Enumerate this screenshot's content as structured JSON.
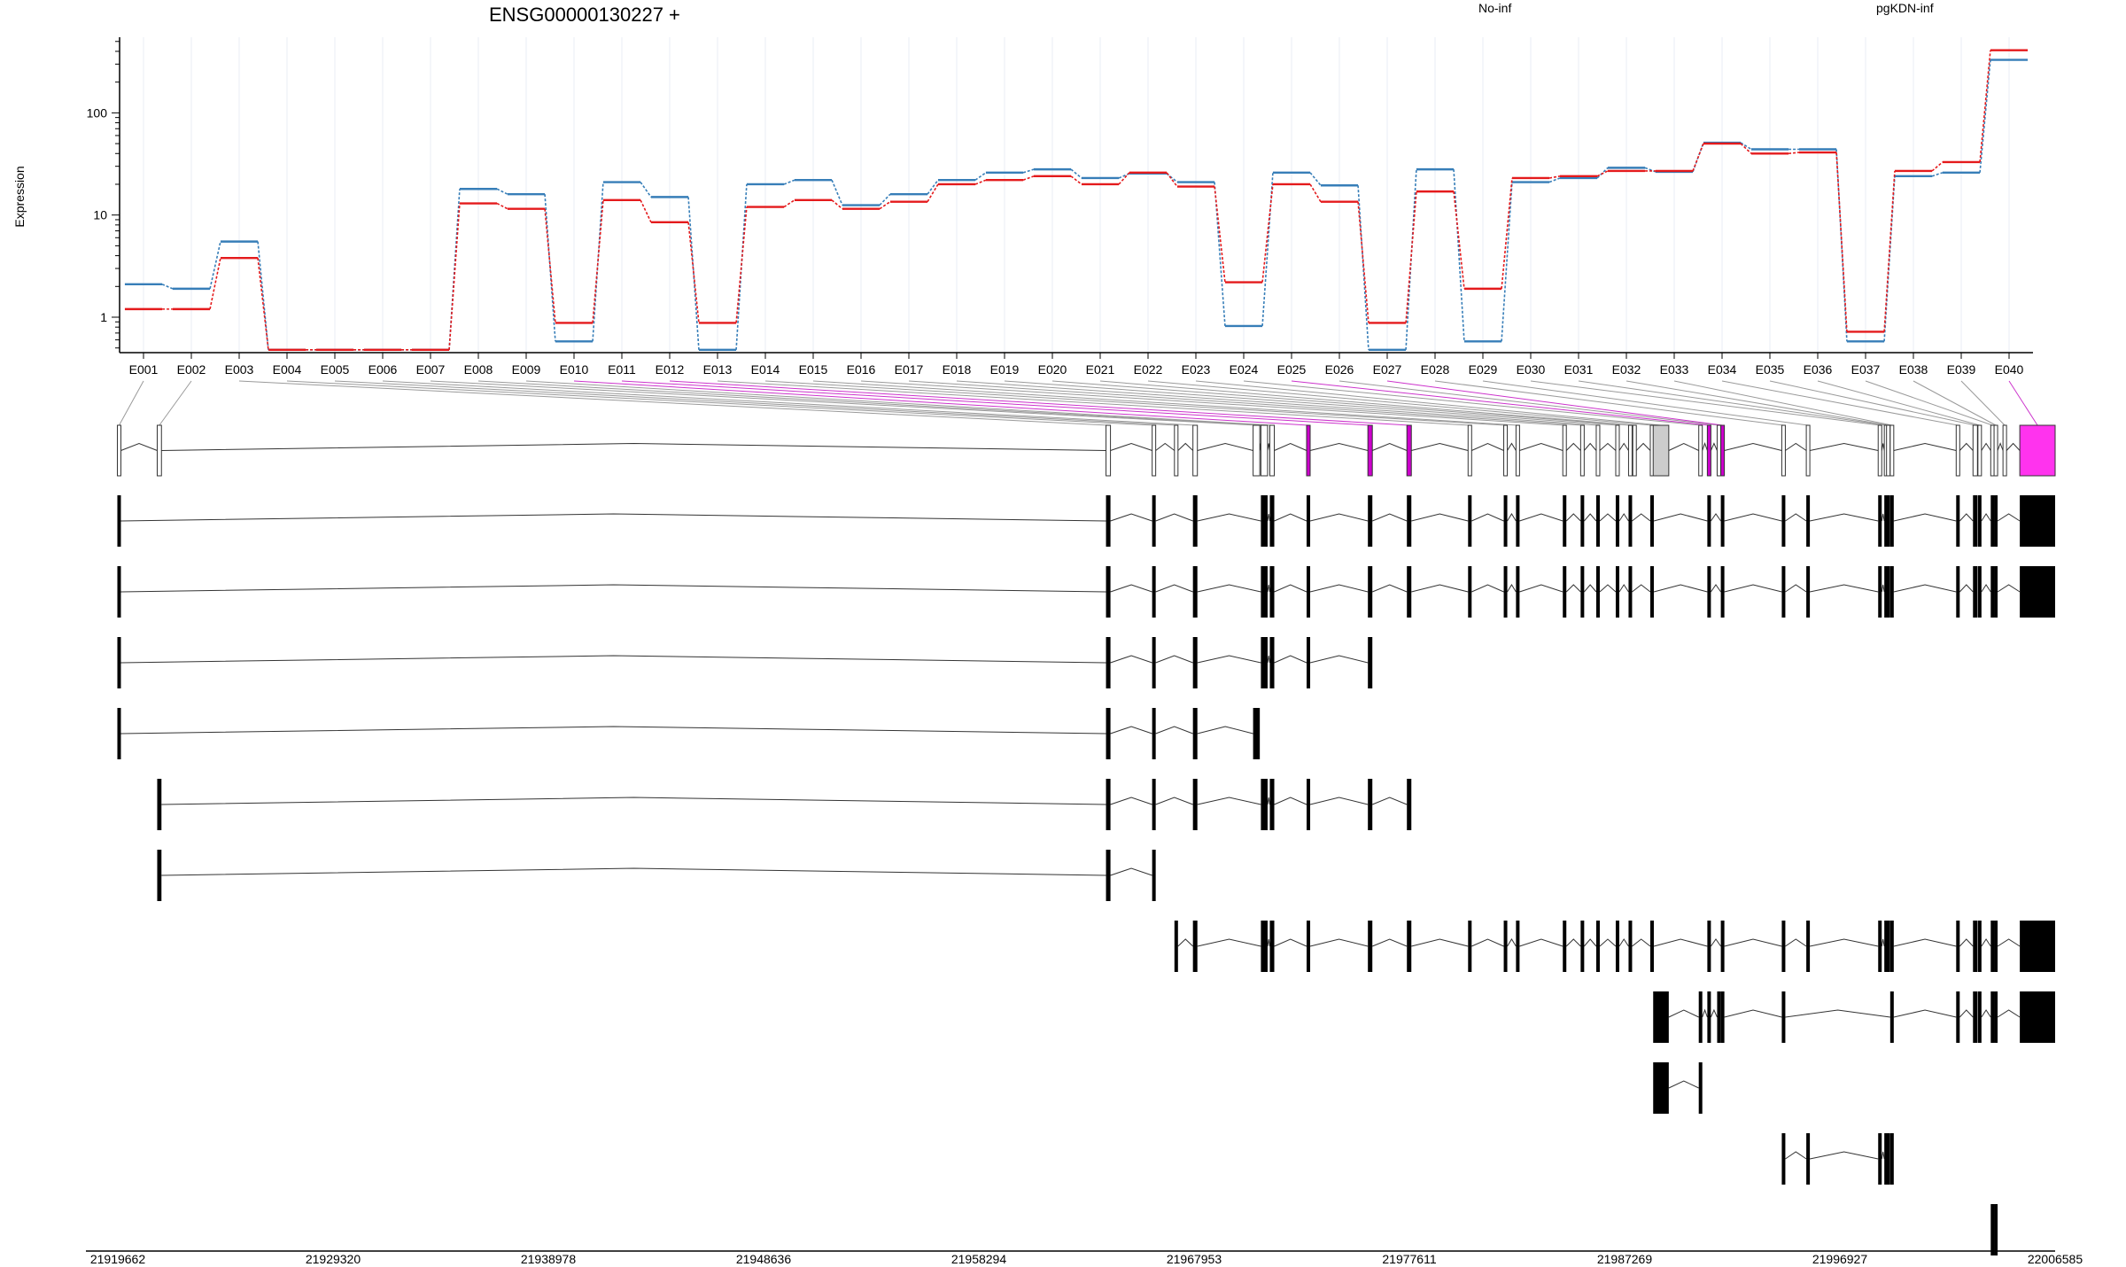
{
  "chart_data": {
    "type": "line",
    "title": "ENSG00000130227 +",
    "ylabel": "Expression",
    "yscale": "log",
    "ylim": [
      0.45,
      550
    ],
    "yticks": [
      {
        "v": 1,
        "label": "1"
      },
      {
        "v": 10,
        "label": "10"
      },
      {
        "v": 100,
        "label": "100"
      }
    ],
    "grid": true,
    "legend_placement": "top",
    "categories": [
      "E001",
      "E002",
      "E003",
      "E004",
      "E005",
      "E006",
      "E007",
      "E008",
      "E009",
      "E010",
      "E011",
      "E012",
      "E013",
      "E014",
      "E015",
      "E016",
      "E017",
      "E018",
      "E019",
      "E020",
      "E021",
      "E022",
      "E023",
      "E024",
      "E025",
      "E026",
      "E027",
      "E028",
      "E029",
      "E030",
      "E031",
      "E032",
      "E033",
      "E034",
      "E035",
      "E036",
      "E037",
      "E038",
      "E039",
      "E040"
    ],
    "series": [
      {
        "name": "No-inf",
        "color": "#e41a1c",
        "values": [
          1.2,
          1.2,
          3.8,
          0.48,
          0.48,
          0.48,
          0.48,
          13,
          11.5,
          0.88,
          14,
          8.5,
          0.88,
          12,
          14,
          11.5,
          13.5,
          20,
          22,
          24,
          20,
          26,
          19,
          2.2,
          20,
          13.5,
          0.88,
          17,
          1.9,
          23,
          24,
          27,
          27,
          50,
          40,
          41,
          0.72,
          27,
          33,
          410
        ]
      },
      {
        "name": "pgKDN-inf",
        "color": "#377eb8",
        "values": [
          2.1,
          1.9,
          5.5,
          0.48,
          0.48,
          0.48,
          0.48,
          18,
          16,
          0.58,
          21,
          15,
          0.48,
          20,
          22,
          12.5,
          16,
          22,
          26,
          28,
          23,
          25.5,
          21,
          0.82,
          26,
          19.5,
          0.48,
          28,
          0.58,
          21,
          23,
          29,
          26.5,
          51,
          44,
          44,
          0.58,
          24,
          26,
          330
        ]
      }
    ],
    "genomic_axis": {
      "start": 21919662,
      "end": 22006585,
      "tick_labels": [
        "21919662",
        "21929320",
        "21938978",
        "21948636",
        "21958294",
        "21967953",
        "21977611",
        "21987269",
        "21996927",
        "22006585"
      ]
    },
    "exons": [
      {
        "id": "E001",
        "start": 21919662,
        "end": 21919780,
        "fill": "#ffffff"
      },
      {
        "id": "E002",
        "start": 21921430,
        "end": 21921620,
        "fill": "#ffffff"
      },
      {
        "id": "E003",
        "start": 21964000,
        "end": 21964200,
        "fill": "#ffffff"
      },
      {
        "id": "E004",
        "start": 21966100,
        "end": 21966200,
        "fill": "#ffffff"
      },
      {
        "id": "E005",
        "start": 21967100,
        "end": 21967200,
        "fill": "#ffffff"
      },
      {
        "id": "E006",
        "start": 21967900,
        "end": 21968100,
        "fill": "#ffffff"
      },
      {
        "id": "E007",
        "start": 21970600,
        "end": 21970900,
        "fill": "#ffffff"
      },
      {
        "id": "E008",
        "start": 21970950,
        "end": 21971250,
        "fill": "#ffffff"
      },
      {
        "id": "E009",
        "start": 21971350,
        "end": 21971550,
        "fill": "#ffffff"
      },
      {
        "id": "E010",
        "start": 21973000,
        "end": 21973160,
        "fill": "#cc00cc"
      },
      {
        "id": "E011",
        "start": 21975750,
        "end": 21975950,
        "fill": "#cc00cc"
      },
      {
        "id": "E012",
        "start": 21977500,
        "end": 21977700,
        "fill": "#cc00cc"
      },
      {
        "id": "E013",
        "start": 21980250,
        "end": 21980400,
        "fill": "#ffffff"
      },
      {
        "id": "E014",
        "start": 21981850,
        "end": 21982000,
        "fill": "#ffffff"
      },
      {
        "id": "E015",
        "start": 21982400,
        "end": 21982550,
        "fill": "#ffffff"
      },
      {
        "id": "E016",
        "start": 21984500,
        "end": 21984650,
        "fill": "#ffffff"
      },
      {
        "id": "E017",
        "start": 21985300,
        "end": 21985450,
        "fill": "#ffffff"
      },
      {
        "id": "E018",
        "start": 21986000,
        "end": 21986150,
        "fill": "#ffffff"
      },
      {
        "id": "E019",
        "start": 21986900,
        "end": 21987000,
        "fill": "#ffffff"
      },
      {
        "id": "E020",
        "start": 21987450,
        "end": 21987600,
        "fill": "#ffffff"
      },
      {
        "id": "E021",
        "start": 21987650,
        "end": 21987780,
        "fill": "#ffffff"
      },
      {
        "id": "E022",
        "start": 21988450,
        "end": 21988550,
        "fill": "#ffffff"
      },
      {
        "id": "E023",
        "start": 21988550,
        "end": 21989250,
        "fill": "#cccccc"
      },
      {
        "id": "E024",
        "start": 21990600,
        "end": 21990750,
        "fill": "#ffffff"
      },
      {
        "id": "E025",
        "start": 21991000,
        "end": 21991120,
        "fill": "#cc00cc"
      },
      {
        "id": "E026",
        "start": 21991450,
        "end": 21991550,
        "fill": "#ffffff"
      },
      {
        "id": "E027",
        "start": 21991630,
        "end": 21991700,
        "fill": "#cc00cc"
      },
      {
        "id": "E028",
        "start": 21994350,
        "end": 21994450,
        "fill": "#ffffff"
      },
      {
        "id": "E029",
        "start": 21995450,
        "end": 21995550,
        "fill": "#ffffff"
      },
      {
        "id": "E030",
        "start": 21998650,
        "end": 21998800,
        "fill": "#ffffff"
      },
      {
        "id": "E031",
        "start": 21998950,
        "end": 21999050,
        "fill": "#ffffff"
      },
      {
        "id": "E032",
        "start": 21999050,
        "end": 21999150,
        "fill": "#ffffff"
      },
      {
        "id": "E033",
        "start": 21999200,
        "end": 21999330,
        "fill": "#ffffff"
      },
      {
        "id": "E034",
        "start": 22002150,
        "end": 22002300,
        "fill": "#ffffff"
      },
      {
        "id": "E035",
        "start": 22002900,
        "end": 22003100,
        "fill": "#ffffff"
      },
      {
        "id": "E036",
        "start": 22003150,
        "end": 22003250,
        "fill": "#ffffff"
      },
      {
        "id": "E037",
        "start": 22003700,
        "end": 22003850,
        "fill": "#ffffff"
      },
      {
        "id": "E038",
        "start": 22003900,
        "end": 22003950,
        "fill": "#ffffff"
      },
      {
        "id": "E039",
        "start": 22004300,
        "end": 22004350,
        "fill": "#ffffff"
      },
      {
        "id": "E040",
        "start": 22005000,
        "end": 22006585,
        "fill": "#ff33ee"
      }
    ],
    "transcripts": [
      {
        "exons": [
          1,
          3,
          4,
          6,
          8,
          9,
          10,
          11,
          12,
          13,
          14,
          15,
          16,
          17,
          18,
          19,
          20,
          22,
          25,
          27,
          28,
          29,
          30,
          31,
          32,
          33,
          34,
          35,
          36,
          37,
          38,
          40
        ]
      },
      {
        "exons": [
          1,
          3,
          4,
          6,
          8,
          9,
          10,
          11,
          12,
          13,
          14,
          15,
          16,
          17,
          18,
          19,
          20,
          22,
          25,
          27,
          28,
          29,
          30,
          31,
          32,
          33,
          34,
          35,
          36,
          37,
          38,
          40
        ]
      },
      {
        "exons": [
          1,
          3,
          4,
          6,
          8,
          9,
          10,
          11
        ]
      },
      {
        "exons": [
          1,
          3,
          4,
          6,
          7
        ]
      },
      {
        "exons": [
          2,
          3,
          4,
          6,
          8,
          9,
          10,
          11,
          12
        ]
      },
      {
        "exons": [
          2,
          3,
          4
        ]
      },
      {
        "exons": [
          5,
          6,
          8,
          9,
          10,
          11,
          12,
          13,
          14,
          15,
          16,
          17,
          18,
          19,
          20,
          22,
          25,
          27,
          28,
          29,
          30,
          31,
          32,
          33,
          34,
          35,
          36,
          37,
          38,
          40
        ]
      },
      {
        "exons": [
          23,
          24,
          25,
          26,
          27,
          28,
          33,
          34,
          35,
          36,
          37,
          38,
          40
        ]
      },
      {
        "exons": [
          23,
          24
        ]
      },
      {
        "exons": [
          28,
          29,
          30,
          31,
          32,
          33
        ]
      },
      {
        "exons": [
          37,
          38
        ]
      }
    ]
  }
}
